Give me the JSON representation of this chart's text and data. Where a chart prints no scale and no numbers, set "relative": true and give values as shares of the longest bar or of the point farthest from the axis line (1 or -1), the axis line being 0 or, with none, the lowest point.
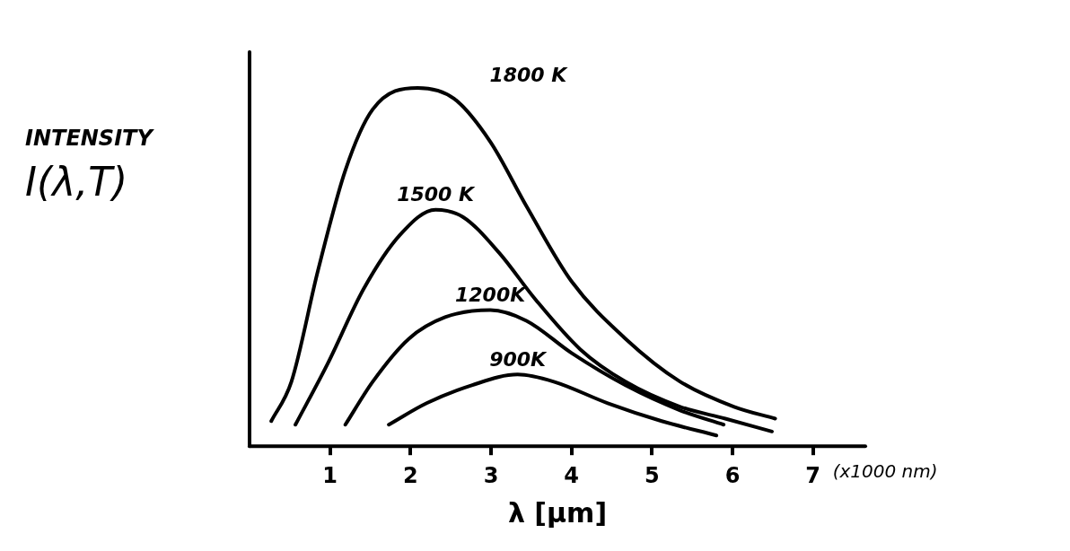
{
  "chart_data": {
    "type": "line",
    "relative": true,
    "xlabel": "λ [μm]",
    "ylabel": "INTENSITY\nI(λ,T)",
    "annotations": [
      "(x1000 nm)"
    ],
    "xlim": [
      0,
      7.65
    ],
    "xticks": [
      1,
      2,
      3,
      4,
      5,
      6,
      7
    ],
    "grid": false,
    "legend": false,
    "marker": "none",
    "line_style": "solid",
    "series": [
      {
        "name": "1800 K",
        "color": "#000000",
        "x": [
          0.27,
          0.52,
          0.85,
          1.19,
          1.53,
          2.09,
          2.54,
          2.99,
          3.44,
          4.0,
          4.67,
          5.35,
          6.02,
          6.53
        ],
        "values": [
          0.07,
          0.18,
          0.49,
          0.77,
          0.94,
          1.0,
          0.97,
          0.85,
          0.67,
          0.46,
          0.3,
          0.18,
          0.11,
          0.077
        ]
      },
      {
        "name": "1500 K",
        "color": "#000000",
        "x": [
          0.57,
          0.97,
          1.42,
          1.87,
          2.31,
          2.65,
          3.1,
          3.55,
          4.11,
          4.67,
          5.35,
          5.91,
          6.49
        ],
        "values": [
          0.06,
          0.23,
          0.44,
          0.59,
          0.66,
          0.64,
          0.54,
          0.41,
          0.27,
          0.18,
          0.11,
          0.077,
          0.041
        ]
      },
      {
        "name": "1200K",
        "color": "#000000",
        "x": [
          1.19,
          1.53,
          1.98,
          2.43,
          2.99,
          3.44,
          4.0,
          4.67,
          5.35,
          5.89
        ],
        "values": [
          0.06,
          0.18,
          0.3,
          0.36,
          0.38,
          0.35,
          0.26,
          0.17,
          0.1,
          0.06
        ]
      },
      {
        "name": "900K",
        "color": "#000000",
        "x": [
          1.73,
          2.2,
          2.76,
          3.33,
          3.78,
          4.45,
          5.12,
          5.8
        ],
        "values": [
          0.06,
          0.12,
          0.17,
          0.2,
          0.18,
          0.12,
          0.07,
          0.03
        ]
      }
    ]
  }
}
